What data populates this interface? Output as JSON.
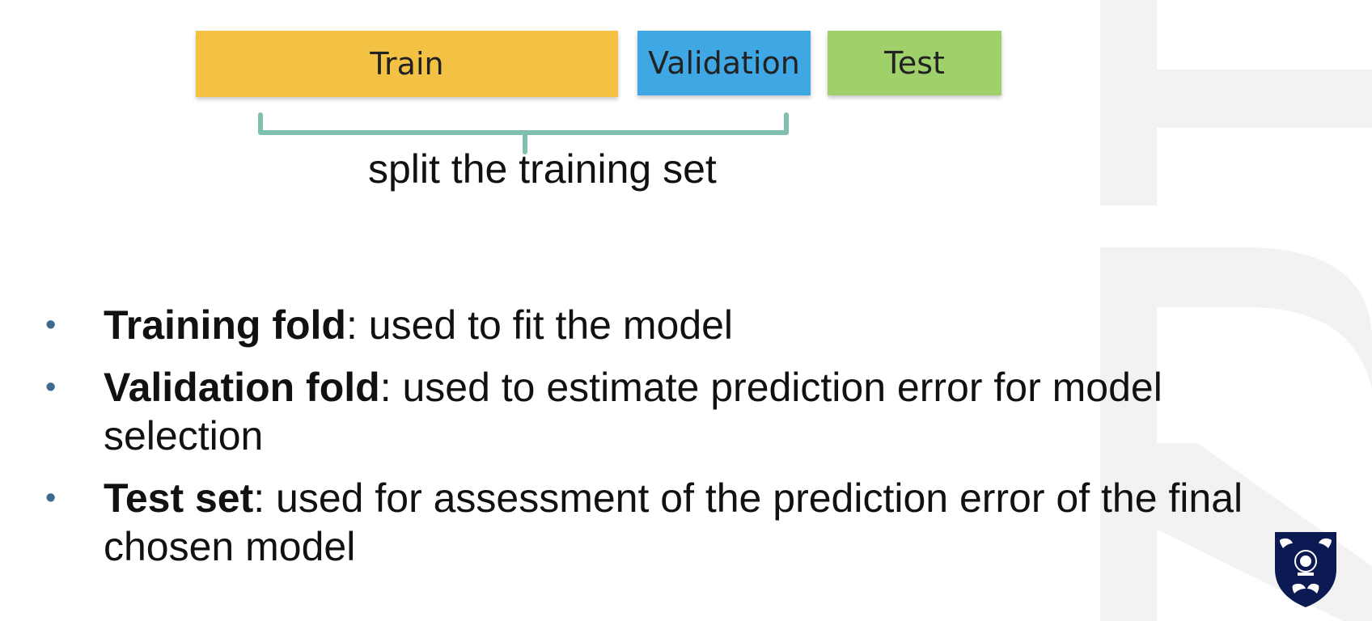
{
  "diagram": {
    "boxes": [
      {
        "label": "Train",
        "color": "#f3c244"
      },
      {
        "label": "Validation",
        "color": "#3fa7e3"
      },
      {
        "label": "Test",
        "color": "#9fd06a"
      }
    ],
    "brace_color": "#7fbfb0",
    "caption": "split the training set"
  },
  "bullets": [
    {
      "term": "Training fold",
      "text": ": used to fit the model"
    },
    {
      "term": "Validation fold",
      "text": ": used to estimate prediction error for model selection"
    },
    {
      "term": "Test set",
      "text": ": used for assessment of the prediction error of the final chosen model"
    }
  ],
  "colors": {
    "bullet_marker": "#3e6a8e",
    "watermark": "#f3f2f3",
    "logo_shield": "#0b1a52"
  },
  "icons": {
    "logo": "university-crest-icon"
  }
}
